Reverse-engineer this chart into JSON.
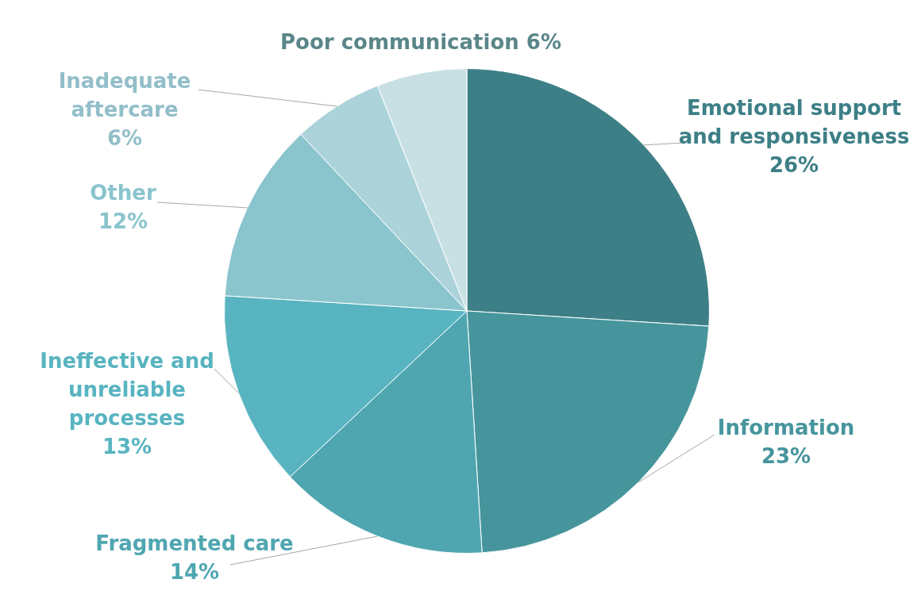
{
  "chart_data": {
    "type": "pie",
    "categories": [
      "Emotional support and responsiveness",
      "Information",
      "Fragmented care",
      "Ineffective and unreliable processes",
      "Other",
      "Inadequate aftercare",
      "Poor communication"
    ],
    "values": [
      26,
      23,
      14,
      13,
      12,
      6,
      6
    ],
    "colors": [
      "#3d7f86",
      "#46959c",
      "#4fa6b1",
      "#58b4c0",
      "#8ac4cd",
      "#acd3da",
      "#c8e0e4"
    ],
    "value_labels": [
      "26%",
      "23%",
      "14%",
      "13%",
      "12%",
      "6%",
      "6%"
    ],
    "legend": false
  }
}
